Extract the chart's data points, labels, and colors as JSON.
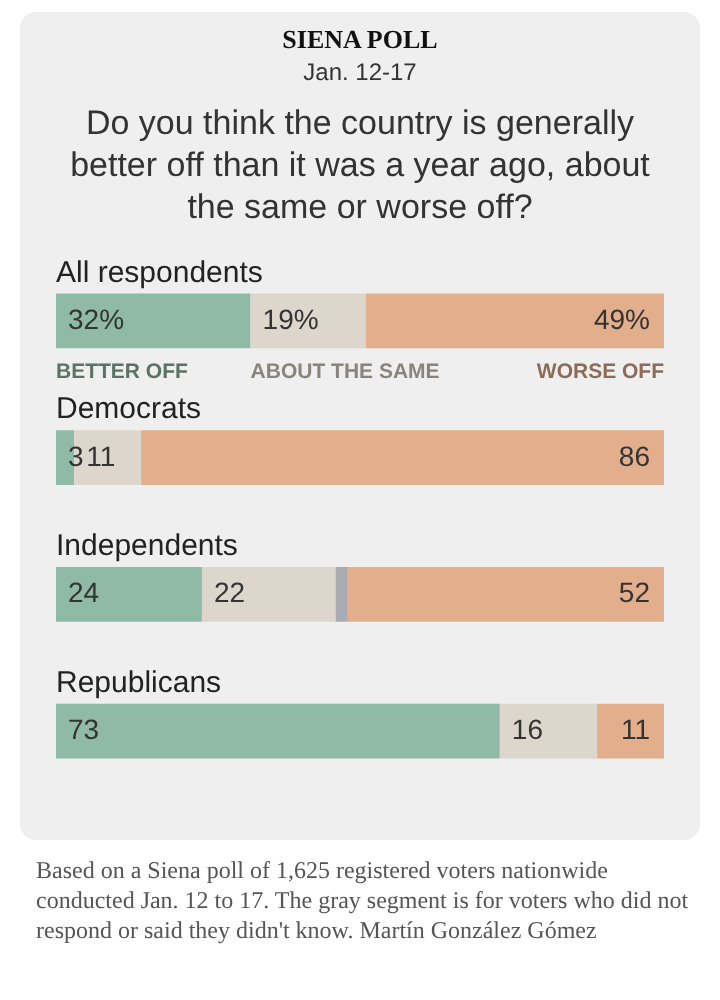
{
  "chart_data": {
    "type": "bar",
    "orientation": "horizontal",
    "stacked": true,
    "title": "SIENA POLL",
    "subtitle": "Jan. 12-17",
    "categories": [
      "All respondents",
      "Democrats",
      "Independents",
      "Republicans"
    ],
    "series": [
      {
        "name": "BETTER OFF",
        "color": "#8fbaa6",
        "values": [
          32,
          3,
          24,
          73
        ],
        "value_labels": [
          "32%",
          "3",
          "24",
          "73"
        ]
      },
      {
        "name": "ABOUT THE SAME",
        "color": "#ddd6cc",
        "values": [
          19,
          11,
          22,
          16
        ],
        "value_labels": [
          "19%",
          "11",
          "22",
          "16"
        ]
      },
      {
        "color": "#a9abb3",
        "values": [
          0,
          0,
          2,
          0
        ]
      },
      {
        "name": "WORSE OFF",
        "color": "#e2ae8c",
        "values": [
          49,
          86,
          52,
          11
        ],
        "value_labels": [
          "49%",
          "86",
          "52",
          "11"
        ]
      }
    ],
    "legend": "top",
    "annotations": [
      "Do you think the country is generally better off than it was a year ago, about the same or worse off?",
      "Based on a Siena poll of 1,625 registered voters nationwide conducted Jan. 12 to 17.  The gray segment is for voters who did not respond or said they didn't know.  Martín González Gómez"
    ]
  }
}
